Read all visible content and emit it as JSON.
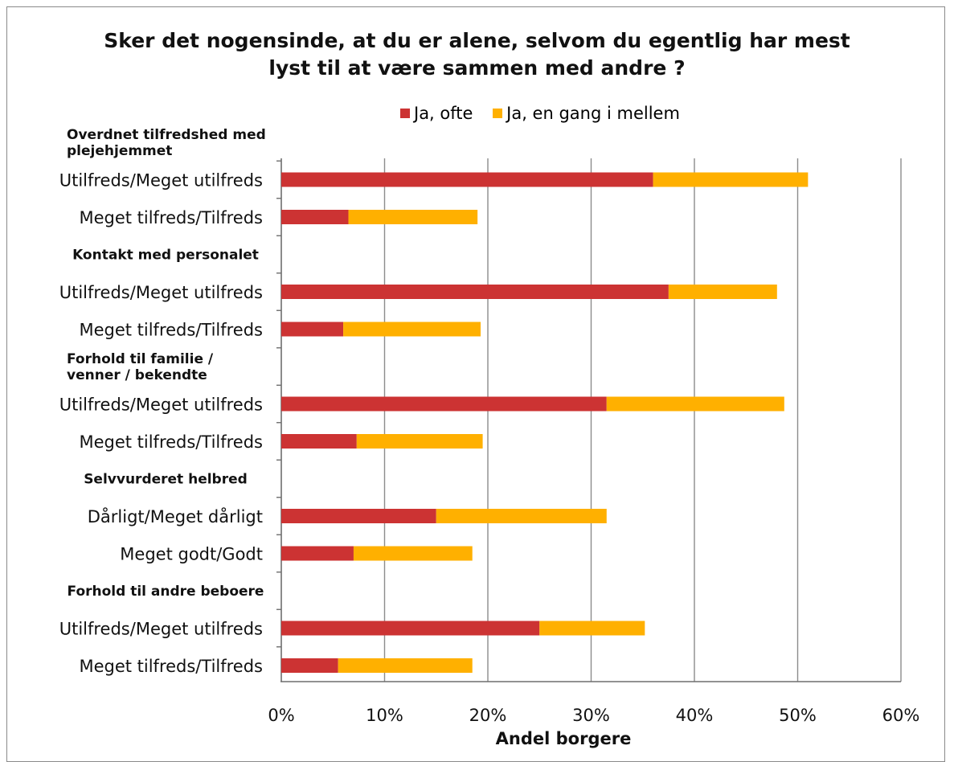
{
  "chart_data": {
    "type": "bar",
    "orientation": "horizontal",
    "stacked": true,
    "title": "Sker det nogensinde, at du er alene, selvom du egentlig har mest lyst til at være sammen med andre ?",
    "title_lines": [
      "Sker det nogensinde, at du er alene, selvom du egentlig har mest",
      "lyst til at være sammen med andre ?"
    ],
    "xlabel": "Andel borgere",
    "ylabel": "",
    "xlim": [
      0,
      60
    ],
    "xticks": [
      "0%",
      "10%",
      "20%",
      "30%",
      "40%",
      "50%",
      "60%"
    ],
    "grid": "vertical",
    "legend_position": "top",
    "colors": {
      "Ja, ofte": "#cc3333",
      "Ja, en gang i mellem": "#ffb000"
    },
    "rows": [
      {
        "kind": "group",
        "label": "Overdnet tilfredshed med plejehjemmet",
        "label_lines": [
          "Overdnet tilfredshed med",
          "plejehjemmet"
        ]
      },
      {
        "kind": "bar",
        "label": "Utilfreds/Meget utilfreds",
        "values": [
          36,
          15
        ]
      },
      {
        "kind": "bar",
        "label": "Meget tilfreds/Tilfreds",
        "values": [
          6.5,
          12.5
        ]
      },
      {
        "kind": "group",
        "label": "Kontakt med personalet",
        "label_lines": [
          "Kontakt med personalet"
        ]
      },
      {
        "kind": "bar",
        "label": "Utilfreds/Meget utilfreds",
        "values": [
          37.5,
          10.5
        ]
      },
      {
        "kind": "bar",
        "label": "Meget tilfreds/Tilfreds",
        "values": [
          6,
          13.3
        ]
      },
      {
        "kind": "group",
        "label": "Forhold til familie / venner / bekendte",
        "label_lines": [
          "Forhold til familie /",
          "venner / bekendte"
        ]
      },
      {
        "kind": "bar",
        "label": "Utilfreds/Meget utilfreds",
        "values": [
          31.5,
          17.2
        ]
      },
      {
        "kind": "bar",
        "label": "Meget tilfreds/Tilfreds",
        "values": [
          7.3,
          12.2
        ]
      },
      {
        "kind": "group",
        "label": "Selvvurderet helbred",
        "label_lines": [
          "Selvvurderet helbred"
        ]
      },
      {
        "kind": "bar",
        "label": "Dårligt/Meget dårligt",
        "values": [
          15,
          16.5
        ]
      },
      {
        "kind": "bar",
        "label": "Meget godt/Godt",
        "values": [
          7,
          11.5
        ]
      },
      {
        "kind": "group",
        "label": "Forhold til andre beboere",
        "label_lines": [
          "Forhold til andre beboere"
        ]
      },
      {
        "kind": "bar",
        "label": "Utilfreds/Meget utilfreds",
        "values": [
          25,
          10.2
        ]
      },
      {
        "kind": "bar",
        "label": "Meget tilfreds/Tilfreds",
        "values": [
          5.5,
          13
        ]
      }
    ],
    "series": [
      {
        "name": "Ja, ofte"
      },
      {
        "name": "Ja, en gang i mellem"
      }
    ]
  }
}
